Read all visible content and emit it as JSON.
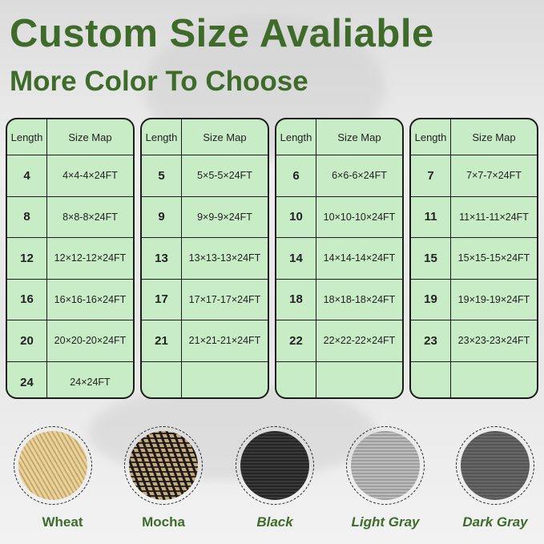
{
  "header": {
    "title": "Custom Size Avaliable",
    "subtitle": "More Color To Choose"
  },
  "tables": [
    {
      "head": [
        "Length",
        "Size Map"
      ],
      "rows": [
        [
          "4",
          "4×4-4×24FT"
        ],
        [
          "8",
          "8×8-8×24FT"
        ],
        [
          "12",
          "12×12-12×24FT"
        ],
        [
          "16",
          "16×16-16×24FT"
        ],
        [
          "20",
          "20×20-20×24FT"
        ],
        [
          "24",
          "24×24FT"
        ]
      ]
    },
    {
      "head": [
        "Length",
        "Size Map"
      ],
      "rows": [
        [
          "5",
          "5×5-5×24FT"
        ],
        [
          "9",
          "9×9-9×24FT"
        ],
        [
          "13",
          "13×13-13×24FT"
        ],
        [
          "17",
          "17×17-17×24FT"
        ],
        [
          "21",
          "21×21-21×24FT"
        ],
        [
          "",
          ""
        ]
      ]
    },
    {
      "head": [
        "Length",
        "Size Map"
      ],
      "rows": [
        [
          "6",
          "6×6-6×24FT"
        ],
        [
          "10",
          "10×10-10×24FT"
        ],
        [
          "14",
          "14×14-14×24FT"
        ],
        [
          "18",
          "18×18-18×24FT"
        ],
        [
          "22",
          "22×22-22×24FT"
        ],
        [
          "",
          ""
        ]
      ]
    },
    {
      "head": [
        "Length",
        "Size Map"
      ],
      "rows": [
        [
          "7",
          "7×7-7×24FT"
        ],
        [
          "11",
          "11×11-11×24FT"
        ],
        [
          "15",
          "15×15-15×24FT"
        ],
        [
          "19",
          "19×19-19×24FT"
        ],
        [
          "23",
          "23×23-23×24FT"
        ],
        [
          "",
          ""
        ]
      ]
    }
  ],
  "colors": [
    {
      "label": "Wheat",
      "swatch": "#d9bd83"
    },
    {
      "label": "Mocha",
      "swatch": "#8a7350"
    },
    {
      "label": "Black",
      "swatch": "#2e2e2e"
    },
    {
      "label": "Light Gray",
      "swatch": "#a9a9a9"
    },
    {
      "label": "Dark Gray",
      "swatch": "#5a5a5a"
    }
  ],
  "accent": "#3f6b2a",
  "table_fill": "#c8ecc6"
}
